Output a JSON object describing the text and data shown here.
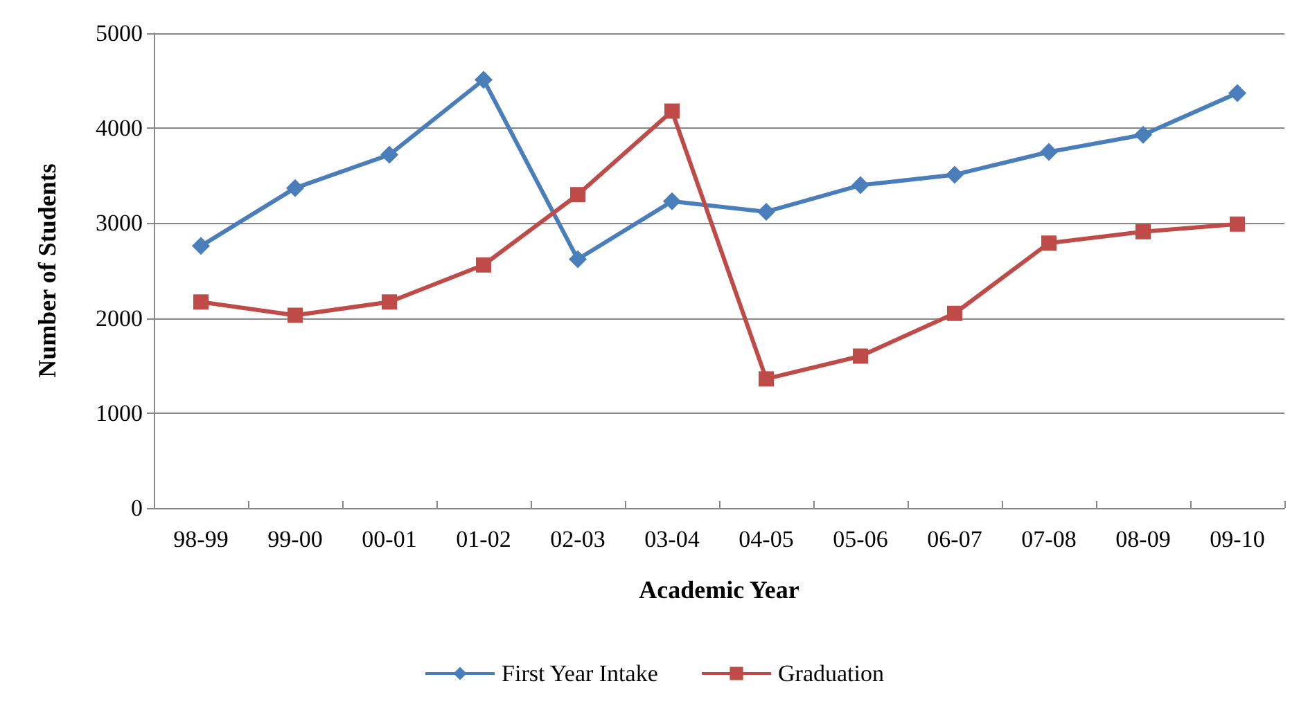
{
  "chart_data": {
    "type": "line",
    "xlabel": "Academic Year",
    "ylabel": "Number of Students",
    "categories": [
      "98-99",
      "99-00",
      "00-01",
      "01-02",
      "02-03",
      "03-04",
      "04-05",
      "05-06",
      "06-07",
      "07-08",
      "08-09",
      "09-10"
    ],
    "series": [
      {
        "name": "First Year Intake",
        "color": "#4a7ebb",
        "marker": "diamond",
        "values": [
          2760,
          3370,
          3720,
          4510,
          2620,
          3230,
          3120,
          3400,
          3510,
          3750,
          3930,
          4370
        ]
      },
      {
        "name": "Graduation",
        "color": "#be4b48",
        "marker": "square",
        "values": [
          2170,
          2030,
          2170,
          2560,
          3300,
          4180,
          1360,
          1600,
          2050,
          2790,
          2910,
          2990
        ]
      }
    ],
    "ylim": [
      0,
      5000
    ],
    "yticks": [
      0,
      1000,
      2000,
      3000,
      4000,
      5000
    ],
    "grid": "y",
    "legend": "bottom",
    "line_style": "solid"
  }
}
